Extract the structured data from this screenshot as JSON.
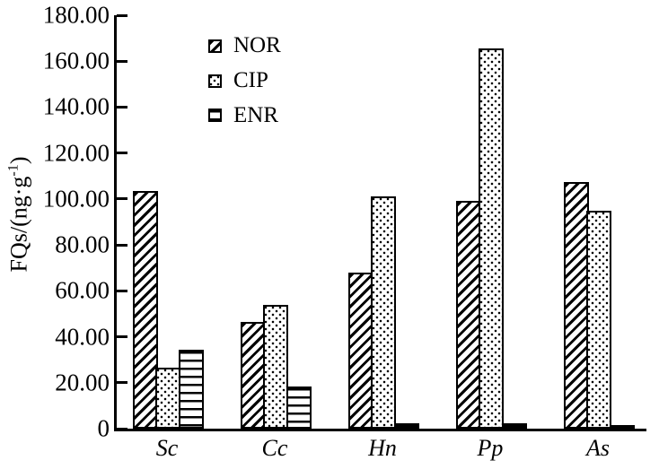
{
  "chart_data": {
    "type": "bar",
    "title": "",
    "xlabel": "",
    "ylabel": "FQs/(ng·g⁻¹)",
    "ylabel_parts": {
      "main": "FQs/(ng·g",
      "sup": "-1",
      "close": ")"
    },
    "categories": [
      "Sc",
      "Cc",
      "Hn",
      "Pp",
      "As"
    ],
    "series": [
      {
        "name": "NOR",
        "pattern": "diagonal-hatch",
        "values": [
          103.3,
          46.4,
          67.8,
          99.0,
          107.3
        ]
      },
      {
        "name": "CIP",
        "pattern": "dots",
        "values": [
          26.7,
          53.7,
          101.3,
          165.6,
          94.9
        ]
      },
      {
        "name": "ENR",
        "pattern": "horizontal-lines",
        "values": [
          34.3,
          18.3,
          2.4,
          2.3,
          1.5
        ]
      }
    ],
    "ylim": [
      0,
      180
    ],
    "ytick_step": 20,
    "ytick_labels": [
      "0",
      "20.00",
      "40.00",
      "60.00",
      "80.00",
      "100.00",
      "120.00",
      "140.00",
      "160.00",
      "180.00"
    ],
    "legend_position": "inside-top-left",
    "grid": false,
    "colors": {
      "foreground": "#000000",
      "background": "#ffffff"
    }
  }
}
